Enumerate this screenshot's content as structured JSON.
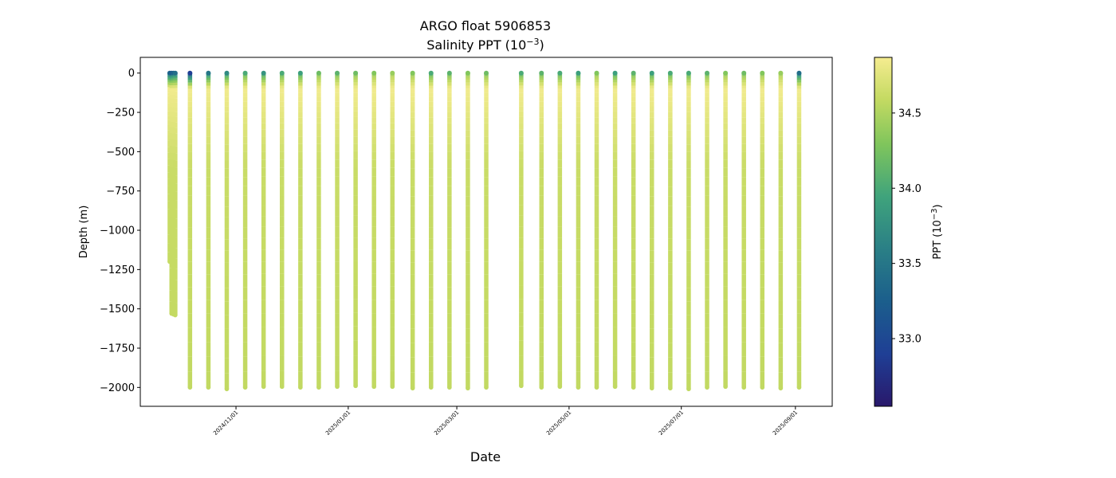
{
  "chart_data": {
    "type": "scatter",
    "title": "ARGO float 5906853",
    "subtitle_prefix": "Salinity PPT (10",
    "subtitle_exp": "−3",
    "subtitle_suffix": ")",
    "xlabel": "Date",
    "ylabel": "Depth (m)",
    "colorbar_label_prefix": "PPT (10",
    "colorbar_label_exp": "−3",
    "colorbar_label_suffix": ")",
    "colormap": "haline",
    "colorbar_range": [
      32.55,
      34.87
    ],
    "colorbar_ticks": [
      {
        "value": 33.0,
        "label": "33.0"
      },
      {
        "value": 33.5,
        "label": "33.5"
      },
      {
        "value": 34.0,
        "label": "34.0"
      },
      {
        "value": 34.5,
        "label": "34.5"
      }
    ],
    "xlim": [
      "2024-09-10",
      "2025-09-21"
    ],
    "ylim": [
      -2120,
      100
    ],
    "yticks": [
      {
        "value": 0,
        "label": "0"
      },
      {
        "value": -250,
        "label": "−250"
      },
      {
        "value": -500,
        "label": "−500"
      },
      {
        "value": -750,
        "label": "−750"
      },
      {
        "value": -1000,
        "label": "−1000"
      },
      {
        "value": -1250,
        "label": "−1250"
      },
      {
        "value": -1500,
        "label": "−1500"
      },
      {
        "value": -1750,
        "label": "−1750"
      },
      {
        "value": -2000,
        "label": "−2000"
      }
    ],
    "xticks": [
      {
        "date": "2024-11-01",
        "label": "2024/11/01"
      },
      {
        "date": "2025-01-01",
        "label": "2025/01/01"
      },
      {
        "date": "2025-03-01",
        "label": "2025/03/01"
      },
      {
        "date": "2025-05-01",
        "label": "2025/05/01"
      },
      {
        "date": "2025-07-01",
        "label": "2025/07/01"
      },
      {
        "date": "2025-09-01",
        "label": "2025/09/01"
      }
    ],
    "profiles": [
      {
        "date": "2024-09-26",
        "max_depth": 1200,
        "surface_salinity": 33.3
      },
      {
        "date": "2024-09-27",
        "max_depth": 1530,
        "surface_salinity": 33.2
      },
      {
        "date": "2024-09-28",
        "max_depth": 1535,
        "surface_salinity": 33.3
      },
      {
        "date": "2024-09-29",
        "max_depth": 1540,
        "surface_salinity": 33.4
      },
      {
        "date": "2024-10-07",
        "max_depth": 2000,
        "surface_salinity": 32.9
      },
      {
        "date": "2024-10-17",
        "max_depth": 2000,
        "surface_salinity": 33.5
      },
      {
        "date": "2024-10-27",
        "max_depth": 2010,
        "surface_salinity": 33.7
      },
      {
        "date": "2024-11-06",
        "max_depth": 2000,
        "surface_salinity": 34.0
      },
      {
        "date": "2024-11-16",
        "max_depth": 1995,
        "surface_salinity": 33.8
      },
      {
        "date": "2024-11-26",
        "max_depth": 1995,
        "surface_salinity": 34.0
      },
      {
        "date": "2024-12-06",
        "max_depth": 2000,
        "surface_salinity": 33.9
      },
      {
        "date": "2024-12-16",
        "max_depth": 2000,
        "surface_salinity": 34.2
      },
      {
        "date": "2024-12-26",
        "max_depth": 1995,
        "surface_salinity": 34.1
      },
      {
        "date": "2025-01-05",
        "max_depth": 1990,
        "surface_salinity": 34.2
      },
      {
        "date": "2025-01-15",
        "max_depth": 1995,
        "surface_salinity": 34.3
      },
      {
        "date": "2025-01-25",
        "max_depth": 1995,
        "surface_salinity": 34.4
      },
      {
        "date": "2025-02-05",
        "max_depth": 2005,
        "surface_salinity": 34.3
      },
      {
        "date": "2025-02-15",
        "max_depth": 2000,
        "surface_salinity": 34.0
      },
      {
        "date": "2025-02-25",
        "max_depth": 2000,
        "surface_salinity": 34.1
      },
      {
        "date": "2025-03-07",
        "max_depth": 2005,
        "surface_salinity": 34.3
      },
      {
        "date": "2025-03-17",
        "max_depth": 2000,
        "surface_salinity": 34.2
      },
      {
        "date": "2025-04-05",
        "max_depth": 1990,
        "surface_salinity": 34.0
      },
      {
        "date": "2025-04-16",
        "max_depth": 2000,
        "surface_salinity": 34.1
      },
      {
        "date": "2025-04-26",
        "max_depth": 1995,
        "surface_salinity": 34.0
      },
      {
        "date": "2025-05-06",
        "max_depth": 2000,
        "surface_salinity": 33.9
      },
      {
        "date": "2025-05-16",
        "max_depth": 2000,
        "surface_salinity": 34.3
      },
      {
        "date": "2025-05-26",
        "max_depth": 1995,
        "surface_salinity": 33.9
      },
      {
        "date": "2025-06-05",
        "max_depth": 2000,
        "surface_salinity": 34.1
      },
      {
        "date": "2025-06-15",
        "max_depth": 2005,
        "surface_salinity": 33.9
      },
      {
        "date": "2025-06-25",
        "max_depth": 2005,
        "surface_salinity": 34.0
      },
      {
        "date": "2025-07-05",
        "max_depth": 2010,
        "surface_salinity": 34.0
      },
      {
        "date": "2025-07-15",
        "max_depth": 2000,
        "surface_salinity": 34.1
      },
      {
        "date": "2025-07-25",
        "max_depth": 1995,
        "surface_salinity": 34.3
      },
      {
        "date": "2025-08-04",
        "max_depth": 2000,
        "surface_salinity": 34.2
      },
      {
        "date": "2025-08-14",
        "max_depth": 2000,
        "surface_salinity": 34.3
      },
      {
        "date": "2025-08-24",
        "max_depth": 2005,
        "surface_salinity": 34.4
      },
      {
        "date": "2025-09-03",
        "max_depth": 2000,
        "surface_salinity": 33.4
      }
    ]
  }
}
